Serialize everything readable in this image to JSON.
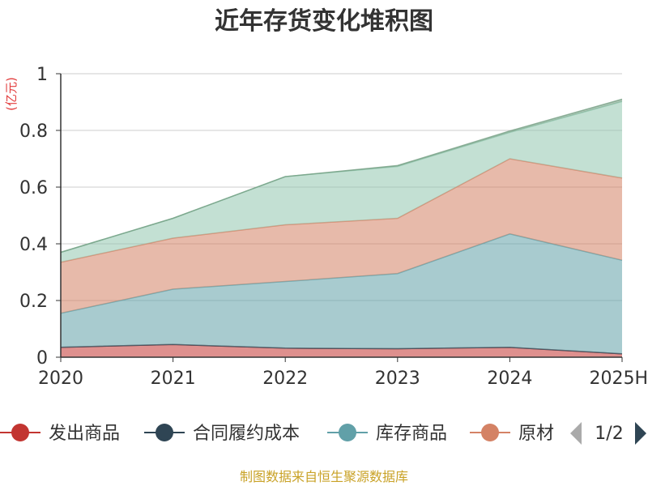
{
  "chart_data": {
    "type": "area",
    "stacked": true,
    "title": "近年存货变化堆积图",
    "unit_label": "(亿元)",
    "categories": [
      "2020",
      "2021",
      "2022",
      "2023",
      "2024",
      "2025H"
    ],
    "ylim": [
      0,
      1
    ],
    "yticks": [
      0,
      0.2,
      0.4,
      0.6,
      0.8,
      1
    ],
    "ytick_labels": [
      "0",
      "0.2",
      "0.4",
      "0.6",
      "0.8",
      "1"
    ],
    "grid": true,
    "series": [
      {
        "name": "发出商品",
        "color": "#c23531",
        "values": [
          0.035,
          0.045,
          0.032,
          0.03,
          0.035,
          0.012
        ]
      },
      {
        "name": "合同履约成本",
        "color": "#2f4554",
        "values": [
          0,
          0,
          0,
          0,
          0,
          0
        ]
      },
      {
        "name": "库存商品",
        "color": "#61a0a8",
        "values": [
          0.12,
          0.195,
          0.235,
          0.265,
          0.4,
          0.33
        ]
      },
      {
        "name": "原材料",
        "color": "#d48265",
        "values": [
          0.18,
          0.18,
          0.2,
          0.195,
          0.265,
          0.29
        ]
      },
      {
        "name": "",
        "color": "#91c7ae",
        "values": [
          0.035,
          0.07,
          0.17,
          0.183,
          0.093,
          0.27
        ]
      },
      {
        "name": "",
        "color": "#749f83",
        "values": [
          0,
          0,
          0,
          0.003,
          0.005,
          0.008
        ]
      }
    ]
  },
  "legend": {
    "visible_items": [
      {
        "label": "发出商品",
        "color": "#c23531"
      },
      {
        "label": "合同履约成本",
        "color": "#2f4554"
      },
      {
        "label": "库存商品",
        "color": "#61a0a8"
      },
      {
        "label": "原材",
        "color": "#d48265"
      }
    ],
    "page_indicator": "1/2",
    "prev_icon": "triangle-left-icon",
    "next_icon": "triangle-right-icon"
  },
  "footer": {
    "source": "制图数据来自恒生聚源数据库"
  }
}
